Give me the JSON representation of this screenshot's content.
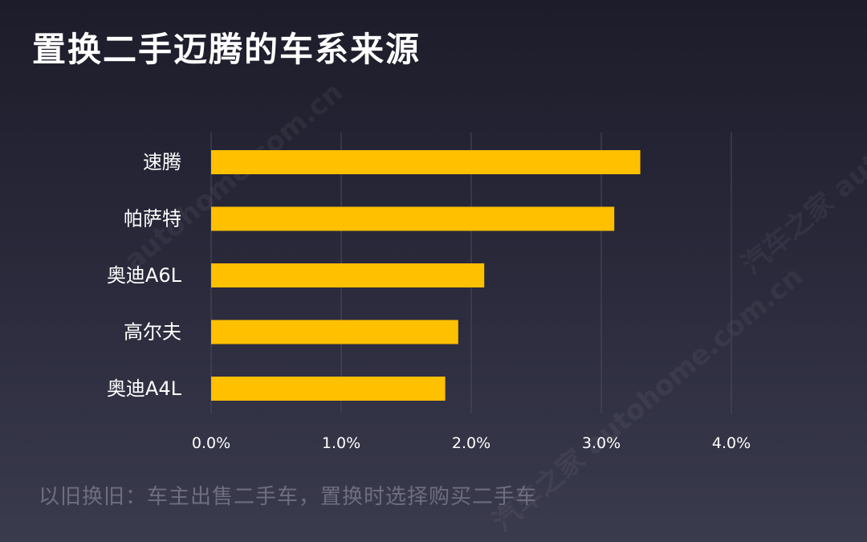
{
  "title": "置换二手迈腾的车系来源",
  "footnote": "以旧换旧：车主出售二手车，置换时选择购买二手车",
  "watermark": {
    "cn": "汽车之家",
    "en": "autohome.com.cn"
  },
  "colors": {
    "bar": "#FFC000",
    "grid": "#4a4a5c",
    "text": "#ffffff",
    "footnote": "#6e6e80"
  },
  "chart_data": {
    "type": "bar",
    "orientation": "horizontal",
    "title": "置换二手迈腾的车系来源",
    "categories": [
      "速腾",
      "帕萨特",
      "奥迪A6L",
      "高尔夫",
      "奥迪A4L"
    ],
    "values": [
      3.3,
      3.1,
      2.1,
      1.9,
      1.8
    ],
    "unit": "%",
    "xlim": [
      0,
      4
    ],
    "xticks": [
      "0.0%",
      "1.0%",
      "2.0%",
      "3.0%",
      "4.0%"
    ],
    "grid": true,
    "legend": "none"
  }
}
